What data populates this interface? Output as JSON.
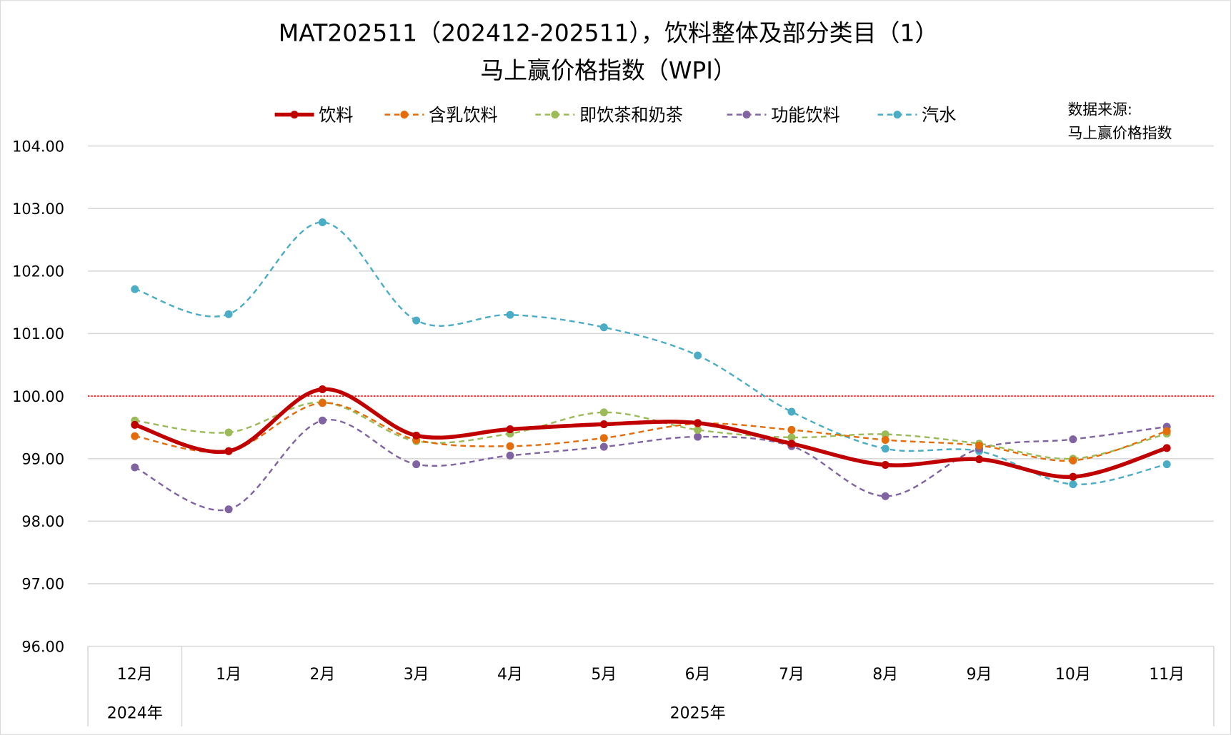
{
  "chart_data": {
    "type": "line",
    "title_line1": "MAT202511（202412-202511），饮料整体及部分类目（1）",
    "title_line2": "马上赢价格指数（WPI）",
    "source_note_line1": "数据来源:",
    "source_note_line2": "马上赢价格指数",
    "categories": [
      "12月",
      "1月",
      "2月",
      "3月",
      "4月",
      "5月",
      "6月",
      "7月",
      "8月",
      "9月",
      "10月",
      "11月"
    ],
    "year_groups": [
      {
        "label": "2024年",
        "span": 1
      },
      {
        "label": "2025年",
        "span": 11
      }
    ],
    "ylim": [
      96,
      104
    ],
    "yticks": [
      "96.00",
      "97.00",
      "98.00",
      "99.00",
      "100.00",
      "101.00",
      "102.00",
      "103.00",
      "104.00"
    ],
    "reference_line": {
      "value": 100,
      "color": "#ff0000",
      "style": "dotted"
    },
    "grid": true,
    "smooth": true,
    "legend_position": "top",
    "series": [
      {
        "name": "饮料",
        "color": "#c00000",
        "style": "solid-thick",
        "values": [
          99.54,
          99.12,
          100.11,
          99.37,
          99.47,
          99.55,
          99.57,
          99.24,
          98.9,
          98.99,
          98.71,
          99.17
        ]
      },
      {
        "name": "含乳饮料",
        "color": "#e46c0a",
        "style": "dashed",
        "values": [
          99.36,
          99.12,
          99.89,
          99.3,
          99.2,
          99.33,
          99.56,
          99.46,
          99.3,
          99.21,
          98.97,
          99.44
        ]
      },
      {
        "name": "即饮茶和奶茶",
        "color": "#9bbb59",
        "style": "dashed",
        "values": [
          99.61,
          99.42,
          99.9,
          99.28,
          99.4,
          99.74,
          99.46,
          99.34,
          99.39,
          99.24,
          99.0,
          99.4
        ]
      },
      {
        "name": "功能饮料",
        "color": "#8064a2",
        "style": "dashed",
        "values": [
          98.86,
          98.19,
          99.61,
          98.91,
          99.05,
          99.19,
          99.35,
          99.2,
          98.4,
          99.16,
          99.31,
          99.51
        ]
      },
      {
        "name": "汽水",
        "color": "#4bacc6",
        "style": "dashed",
        "values": [
          101.71,
          101.31,
          102.78,
          101.21,
          101.3,
          101.1,
          100.65,
          99.75,
          99.16,
          99.12,
          98.59,
          98.91
        ]
      }
    ]
  }
}
